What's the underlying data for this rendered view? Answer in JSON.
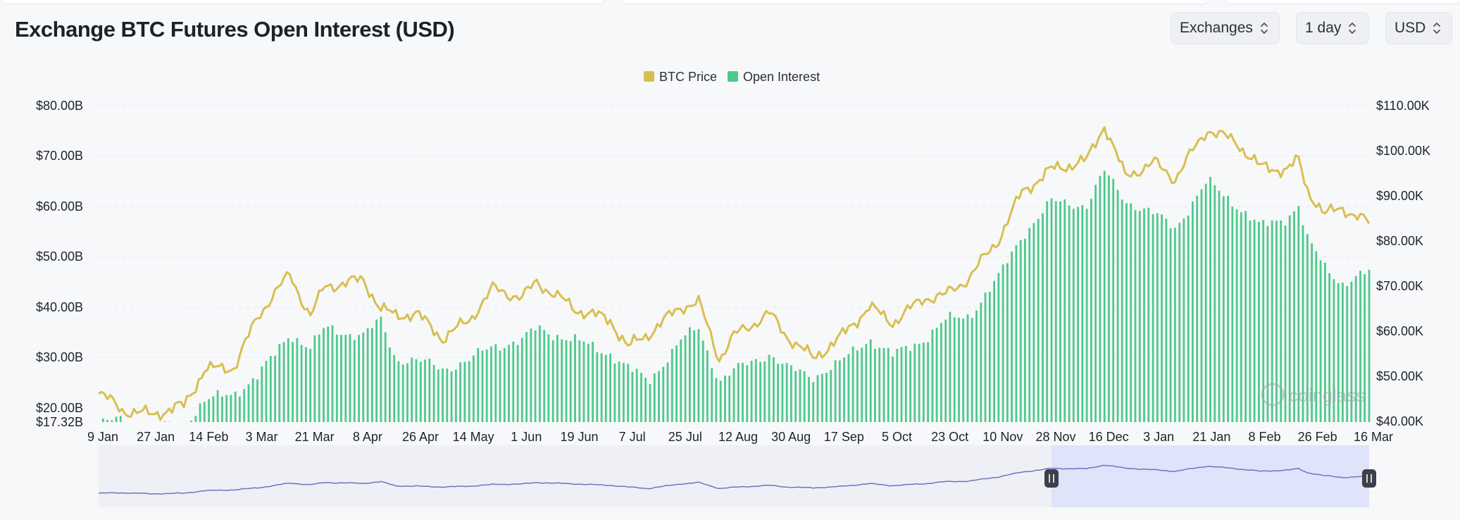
{
  "header": {
    "title": "Exchange BTC Futures Open Interest (USD)",
    "exchanges_label": "Exchanges",
    "interval_label": "1 day",
    "currency_label": "USD"
  },
  "colors": {
    "open_interest": "#4ec98a",
    "btc_price": "#d8bf4f",
    "navigator_line": "#6d75c2",
    "navigator_fill": "#dfe4fb",
    "background": "#f7f8fa"
  },
  "watermark": "coinglass",
  "chart_data": {
    "type": "bar",
    "title": "Exchange BTC Futures Open Interest (USD)",
    "legend": {
      "position": "top-center",
      "items": [
        "BTC Price",
        "Open Interest"
      ]
    },
    "grid": true,
    "x_ticks": [
      "9 Jan",
      "27 Jan",
      "14 Feb",
      "3 Mar",
      "21 Mar",
      "8 Apr",
      "26 Apr",
      "14 May",
      "1 Jun",
      "19 Jun",
      "7 Jul",
      "25 Jul",
      "12 Aug",
      "30 Aug",
      "17 Sep",
      "5 Oct",
      "23 Oct",
      "10 Nov",
      "28 Nov",
      "16 Dec",
      "3 Jan",
      "21 Jan",
      "8 Feb",
      "26 Feb",
      "16 Mar"
    ],
    "y_left": {
      "ticks": [
        "$80.00B",
        "$70.00B",
        "$60.00B",
        "$50.00B",
        "$40.00B",
        "$30.00B",
        "$20.00B",
        "$17.32B"
      ],
      "range": [
        17.32,
        80
      ],
      "unit": "USD billions"
    },
    "y_right": {
      "ticks": [
        "$110.00K",
        "$100.00K",
        "$90.00K",
        "$80.00K",
        "$70.00K",
        "$60.00K",
        "$50.00K",
        "$40.00K"
      ],
      "range": [
        40,
        110
      ],
      "unit": "USD thousands"
    },
    "x_range_dates": [
      "9 Jan",
      "16 Mar"
    ],
    "series": [
      {
        "name": "Open Interest",
        "type": "bar",
        "axis": "left",
        "unit": "USD billions",
        "points": [
          [
            "9 Jan",
            19.5
          ],
          [
            "17 Jan",
            20.3
          ],
          [
            "27 Jan",
            18.5
          ],
          [
            "7 Feb",
            19.5
          ],
          [
            "14 Feb",
            24.0
          ],
          [
            "24 Feb",
            25.5
          ],
          [
            "3 Mar",
            29.0
          ],
          [
            "8 Mar",
            32.5
          ],
          [
            "14 Mar",
            37.5
          ],
          [
            "21 Mar",
            34.5
          ],
          [
            "26 Mar",
            38.5
          ],
          [
            "8 Apr",
            37.0
          ],
          [
            "14 Apr",
            40.0
          ],
          [
            "19 Apr",
            32.5
          ],
          [
            "26 Apr",
            32.0
          ],
          [
            "5 May",
            30.5
          ],
          [
            "14 May",
            32.0
          ],
          [
            "22 May",
            35.0
          ],
          [
            "1 Jun",
            36.0
          ],
          [
            "6 Jun",
            38.5
          ],
          [
            "19 Jun",
            36.0
          ],
          [
            "1 Jul",
            33.5
          ],
          [
            "7 Jul",
            30.5
          ],
          [
            "14 Jul",
            28.0
          ],
          [
            "25 Jul",
            36.0
          ],
          [
            "31 Jul",
            38.5
          ],
          [
            "7 Aug",
            28.0
          ],
          [
            "12 Aug",
            30.0
          ],
          [
            "24 Aug",
            33.5
          ],
          [
            "30 Aug",
            30.5
          ],
          [
            "8 Sep",
            29.0
          ],
          [
            "17 Sep",
            31.5
          ],
          [
            "27 Sep",
            36.5
          ],
          [
            "5 Oct",
            33.0
          ],
          [
            "16 Oct",
            36.5
          ],
          [
            "23 Oct",
            40.0
          ],
          [
            "31 Oct",
            41.0
          ],
          [
            "10 Nov",
            48.5
          ],
          [
            "18 Nov",
            57.0
          ],
          [
            "28 Nov",
            63.5
          ],
          [
            "10 Dec",
            63.0
          ],
          [
            "16 Dec",
            69.5
          ],
          [
            "23 Dec",
            64.0
          ],
          [
            "3 Jan",
            61.0
          ],
          [
            "10 Jan",
            58.5
          ],
          [
            "21 Jan",
            67.5
          ],
          [
            "31 Jan",
            63.0
          ],
          [
            "8 Feb",
            58.5
          ],
          [
            "17 Feb",
            60.5
          ],
          [
            "21 Feb",
            63.0
          ],
          [
            "24 Feb",
            56.0
          ],
          [
            "1 Mar",
            50.5
          ],
          [
            "7 Mar",
            47.5
          ],
          [
            "16 Mar",
            49.5
          ]
        ]
      },
      {
        "name": "BTC Price",
        "type": "line",
        "axis": "right",
        "unit": "USD thousands",
        "points": [
          [
            "9 Jan",
            46.5
          ],
          [
            "17 Jan",
            42.5
          ],
          [
            "27 Jan",
            41.5
          ],
          [
            "7 Feb",
            43.5
          ],
          [
            "14 Feb",
            51.5
          ],
          [
            "24 Feb",
            52.0
          ],
          [
            "3 Mar",
            63.0
          ],
          [
            "8 Mar",
            68.0
          ],
          [
            "14 Mar",
            72.5
          ],
          [
            "21 Mar",
            63.5
          ],
          [
            "26 Mar",
            70.0
          ],
          [
            "8 Apr",
            71.5
          ],
          [
            "14 Apr",
            65.0
          ],
          [
            "19 Apr",
            63.5
          ],
          [
            "26 Apr",
            64.0
          ],
          [
            "5 May",
            58.5
          ],
          [
            "14 May",
            62.5
          ],
          [
            "22 May",
            69.5
          ],
          [
            "1 Jun",
            67.5
          ],
          [
            "6 Jun",
            71.0
          ],
          [
            "19 Jun",
            65.0
          ],
          [
            "1 Jul",
            62.5
          ],
          [
            "7 Jul",
            56.5
          ],
          [
            "14 Jul",
            59.5
          ],
          [
            "25 Jul",
            65.5
          ],
          [
            "31 Jul",
            66.5
          ],
          [
            "7 Aug",
            54.0
          ],
          [
            "12 Aug",
            59.0
          ],
          [
            "24 Aug",
            64.0
          ],
          [
            "30 Aug",
            59.0
          ],
          [
            "8 Sep",
            54.0
          ],
          [
            "17 Sep",
            58.5
          ],
          [
            "27 Sep",
            65.5
          ],
          [
            "5 Oct",
            62.0
          ],
          [
            "16 Oct",
            67.5
          ],
          [
            "23 Oct",
            68.0
          ],
          [
            "31 Oct",
            72.0
          ],
          [
            "10 Nov",
            80.5
          ],
          [
            "18 Nov",
            91.0
          ],
          [
            "28 Nov",
            96.0
          ],
          [
            "10 Dec",
            98.0
          ],
          [
            "16 Dec",
            106.0
          ],
          [
            "23 Dec",
            94.5
          ],
          [
            "3 Jan",
            97.5
          ],
          [
            "10 Jan",
            94.0
          ],
          [
            "21 Jan",
            105.0
          ],
          [
            "31 Jan",
            102.0
          ],
          [
            "8 Feb",
            96.5
          ],
          [
            "17 Feb",
            96.0
          ],
          [
            "21 Feb",
            98.0
          ],
          [
            "24 Feb",
            91.5
          ],
          [
            "1 Mar",
            86.0
          ],
          [
            "7 Mar",
            87.5
          ],
          [
            "16 Mar",
            84.0
          ]
        ]
      }
    ],
    "navigator": {
      "selected_range": [
        "28 Nov",
        "16 Mar"
      ]
    }
  }
}
